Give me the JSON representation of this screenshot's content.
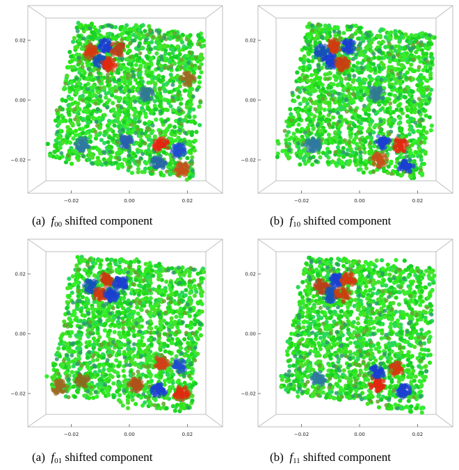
{
  "panels": [
    {
      "caption": {
        "label": "(a)",
        "symbol": "f",
        "subscript": "00",
        "text": "shifted component"
      },
      "y_ticks": [
        "0.02",
        "0.00",
        "−0.02"
      ],
      "x_ticks": [
        "−0.02",
        "0.00",
        "0.02"
      ],
      "blobs": [
        {
          "x": -0.008,
          "y": 0.018,
          "c": "#1a3fd1"
        },
        {
          "x": -0.013,
          "y": 0.016,
          "c": "#d23b10"
        },
        {
          "x": -0.004,
          "y": 0.017,
          "c": "#b8401a"
        },
        {
          "x": -0.01,
          "y": 0.013,
          "c": "#1552b8"
        },
        {
          "x": -0.007,
          "y": 0.012,
          "c": "#e02a0f"
        },
        {
          "x": 0.011,
          "y": -0.015,
          "c": "#e42510"
        },
        {
          "x": 0.017,
          "y": -0.017,
          "c": "#1f4fd0"
        },
        {
          "x": 0.018,
          "y": -0.023,
          "c": "#c8501a"
        },
        {
          "x": 0.01,
          "y": -0.021,
          "c": "#2a67a8"
        },
        {
          "x": -0.001,
          "y": -0.014,
          "c": "#2a5fb0"
        },
        {
          "x": -0.016,
          "y": -0.015,
          "c": "#2f78a0"
        },
        {
          "x": 0.006,
          "y": 0.002,
          "c": "#2f7a90"
        },
        {
          "x": 0.02,
          "y": 0.007,
          "c": "#9a6a20"
        }
      ]
    },
    {
      "caption": {
        "label": "(b)",
        "symbol": "f",
        "subscript": "10",
        "text": "shifted component"
      },
      "y_ticks": [
        "0.02",
        "0.00",
        "−0.02"
      ],
      "x_ticks": [
        "−0.02",
        "0.00",
        "0.02"
      ],
      "blobs": [
        {
          "x": -0.009,
          "y": 0.018,
          "c": "#d23b10"
        },
        {
          "x": -0.004,
          "y": 0.018,
          "c": "#1a3fd1"
        },
        {
          "x": -0.013,
          "y": 0.016,
          "c": "#1552b8"
        },
        {
          "x": -0.01,
          "y": 0.013,
          "c": "#1a3fd1"
        },
        {
          "x": -0.006,
          "y": 0.012,
          "c": "#c84010"
        },
        {
          "x": 0.008,
          "y": -0.014,
          "c": "#1a3fd1"
        },
        {
          "x": 0.014,
          "y": -0.015,
          "c": "#e02a0f"
        },
        {
          "x": 0.016,
          "y": -0.022,
          "c": "#1a3fd1"
        },
        {
          "x": 0.007,
          "y": -0.02,
          "c": "#c8501a"
        },
        {
          "x": 0.006,
          "y": 0.002,
          "c": "#2f7a90"
        },
        {
          "x": -0.016,
          "y": -0.015,
          "c": "#2f78a0"
        }
      ]
    },
    {
      "caption": {
        "label": "(a)",
        "symbol": "f",
        "subscript": "01",
        "text": "shifted component"
      },
      "y_ticks": [
        "0.02",
        "0.00",
        "−0.02"
      ],
      "x_ticks": [
        "−0.02",
        "0.00",
        "0.02"
      ],
      "blobs": [
        {
          "x": -0.008,
          "y": 0.018,
          "c": "#c83a10"
        },
        {
          "x": -0.013,
          "y": 0.016,
          "c": "#1552b8"
        },
        {
          "x": -0.003,
          "y": 0.017,
          "c": "#1a3fd1"
        },
        {
          "x": -0.01,
          "y": 0.013,
          "c": "#d23b10"
        },
        {
          "x": -0.006,
          "y": 0.013,
          "c": "#1a3fd1"
        },
        {
          "x": 0.011,
          "y": -0.01,
          "c": "#d2401a"
        },
        {
          "x": 0.017,
          "y": -0.011,
          "c": "#1f4fd0"
        },
        {
          "x": 0.01,
          "y": -0.019,
          "c": "#1a3fd1"
        },
        {
          "x": 0.018,
          "y": -0.02,
          "c": "#e02a0f"
        },
        {
          "x": -0.016,
          "y": -0.016,
          "c": "#8a6a20"
        },
        {
          "x": -0.024,
          "y": -0.018,
          "c": "#9a6a20"
        },
        {
          "x": 0.002,
          "y": -0.017,
          "c": "#b0501a"
        }
      ]
    },
    {
      "caption": {
        "label": "(b)",
        "symbol": "f",
        "subscript": "11",
        "text": "shifted component"
      },
      "y_ticks": [
        "0.02",
        "0.00",
        "−0.02"
      ],
      "x_ticks": [
        "−0.02",
        "0.00",
        "0.02"
      ],
      "blobs": [
        {
          "x": -0.008,
          "y": 0.018,
          "c": "#1a3fd1"
        },
        {
          "x": -0.004,
          "y": 0.018,
          "c": "#d23b10"
        },
        {
          "x": -0.013,
          "y": 0.016,
          "c": "#b8401a"
        },
        {
          "x": -0.01,
          "y": 0.013,
          "c": "#1552b8"
        },
        {
          "x": -0.006,
          "y": 0.013,
          "c": "#c84010"
        },
        {
          "x": 0.006,
          "y": -0.013,
          "c": "#1a3fd1"
        },
        {
          "x": 0.013,
          "y": -0.012,
          "c": "#d23b10"
        },
        {
          "x": 0.006,
          "y": -0.017,
          "c": "#e42510"
        },
        {
          "x": 0.015,
          "y": -0.019,
          "c": "#1a3fd1"
        },
        {
          "x": -0.014,
          "y": -0.015,
          "c": "#2f78a0"
        }
      ]
    }
  ]
}
